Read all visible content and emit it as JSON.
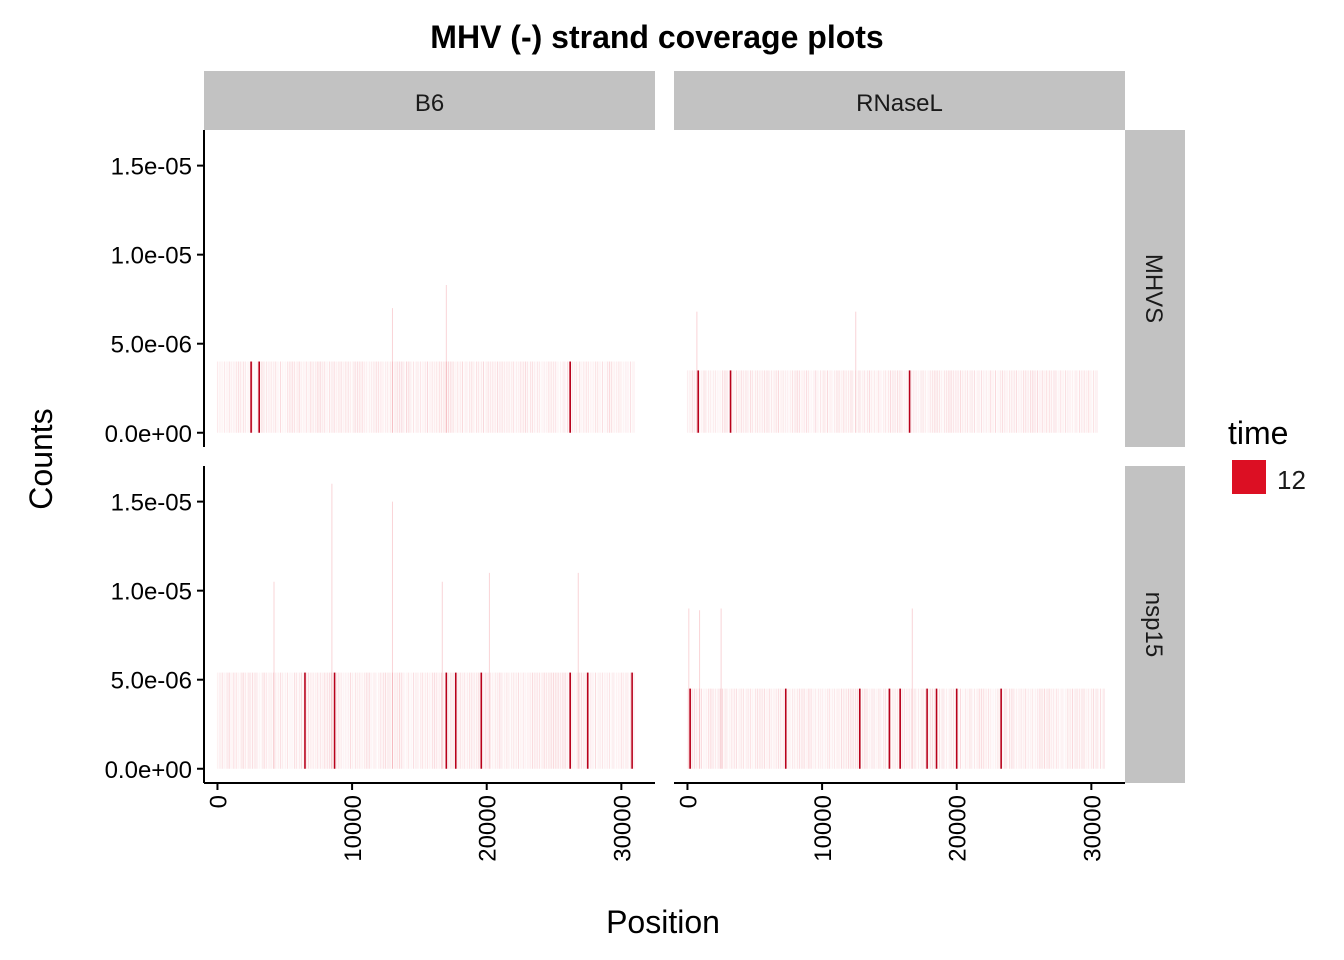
{
  "chart_data": {
    "type": "bar",
    "title": "MHV (-) strand coverage plots",
    "xlabel": "Position",
    "ylabel": "Counts",
    "xlim": [
      -1000,
      32500
    ],
    "ylim": [
      -8e-07,
      1.7e-05
    ],
    "x_ticks": [
      {
        "value": 0,
        "label": "0"
      },
      {
        "value": 10000,
        "label": "10000"
      },
      {
        "value": 20000,
        "label": "20000"
      },
      {
        "value": 30000,
        "label": "30000"
      }
    ],
    "y_ticks": [
      {
        "value": 0,
        "label": "0.0e+00"
      },
      {
        "value": 5e-06,
        "label": "5.0e-06"
      },
      {
        "value": 1e-05,
        "label": "1.0e-05"
      },
      {
        "value": 1.5e-05,
        "label": "1.5e-05"
      }
    ],
    "columns": [
      "B6",
      "RNaseL"
    ],
    "rows": [
      "MHVS",
      "nsp15"
    ],
    "legend": {
      "title": "time",
      "items": [
        {
          "label": "12",
          "color": "#dc0f23"
        }
      ],
      "position": "right"
    },
    "panels": [
      {
        "column": "B6",
        "row": "MHVS",
        "base_value": 4e-06,
        "range": [
          0,
          31000
        ],
        "peaks": [
          {
            "x": 2500,
            "y": 4e-06
          },
          {
            "x": 3100,
            "y": 4e-06
          },
          {
            "x": 13000,
            "y": 7e-06
          },
          {
            "x": 17000,
            "y": 8.3e-06
          },
          {
            "x": 26200,
            "y": 4e-06
          }
        ]
      },
      {
        "column": "RNaseL",
        "row": "MHVS",
        "base_value": 3.5e-06,
        "range": [
          0,
          30500
        ],
        "peaks": [
          {
            "x": 700,
            "y": 6.8e-06
          },
          {
            "x": 800,
            "y": 3.5e-06
          },
          {
            "x": 3200,
            "y": 3.5e-06
          },
          {
            "x": 12500,
            "y": 6.8e-06
          },
          {
            "x": 16500,
            "y": 3.5e-06
          }
        ]
      },
      {
        "column": "B6",
        "row": "nsp15",
        "base_value": 5.4e-06,
        "range": [
          0,
          31000
        ],
        "peaks": [
          {
            "x": 4200,
            "y": 1.05e-05
          },
          {
            "x": 6500,
            "y": 5.4e-06
          },
          {
            "x": 8700,
            "y": 5.4e-06
          },
          {
            "x": 8500,
            "y": 1.6e-05
          },
          {
            "x": 13000,
            "y": 1.5e-05
          },
          {
            "x": 16700,
            "y": 1.05e-05
          },
          {
            "x": 17000,
            "y": 5.4e-06
          },
          {
            "x": 17700,
            "y": 5.4e-06
          },
          {
            "x": 19600,
            "y": 5.4e-06
          },
          {
            "x": 20200,
            "y": 1.1e-05
          },
          {
            "x": 26200,
            "y": 5.4e-06
          },
          {
            "x": 26800,
            "y": 1.1e-05
          },
          {
            "x": 27500,
            "y": 5.4e-06
          },
          {
            "x": 30800,
            "y": 5.4e-06
          }
        ]
      },
      {
        "column": "RNaseL",
        "row": "nsp15",
        "base_value": 4.5e-06,
        "range": [
          0,
          31000
        ],
        "peaks": [
          {
            "x": 100,
            "y": 9e-06
          },
          {
            "x": 200,
            "y": 4.5e-06
          },
          {
            "x": 900,
            "y": 8.9e-06
          },
          {
            "x": 2500,
            "y": 9e-06
          },
          {
            "x": 7300,
            "y": 4.5e-06
          },
          {
            "x": 12800,
            "y": 4.5e-06
          },
          {
            "x": 15000,
            "y": 4.5e-06
          },
          {
            "x": 15800,
            "y": 4.5e-06
          },
          {
            "x": 17800,
            "y": 4.5e-06
          },
          {
            "x": 18500,
            "y": 4.5e-06
          },
          {
            "x": 20000,
            "y": 4.5e-06
          },
          {
            "x": 23300,
            "y": 4.5e-06
          },
          {
            "x": 16700,
            "y": 9e-06
          }
        ]
      }
    ]
  }
}
